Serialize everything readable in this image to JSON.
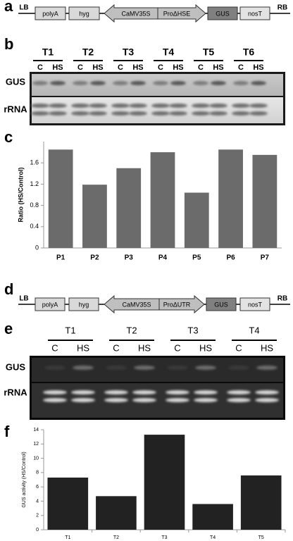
{
  "panels": {
    "a": {
      "label": "a",
      "construct": [
        "LB",
        "polyA",
        "hyg",
        "CaMV35S",
        "ProΔHSE",
        "GUS",
        "nosT",
        "RB"
      ]
    },
    "b": {
      "label": "b",
      "groups": [
        "T1",
        "T2",
        "T3",
        "T4",
        "T5",
        "T6"
      ],
      "lanes": [
        "C",
        "HS"
      ],
      "rows": [
        "GUS",
        "rRNA"
      ]
    },
    "c": {
      "label": "c"
    },
    "d": {
      "label": "d",
      "construct": [
        "LB",
        "polyA",
        "hyg",
        "CaMV35S",
        "ProΔUTR",
        "GUS",
        "nosT",
        "RB"
      ]
    },
    "e": {
      "label": "e",
      "groups": [
        "T1",
        "T2",
        "T3",
        "T4"
      ],
      "lanes": [
        "C",
        "HS"
      ],
      "rows": [
        "GUS",
        "rRNA"
      ]
    },
    "f": {
      "label": "f"
    }
  },
  "chart_data": [
    {
      "type": "bar",
      "y_label": "Ratio (HS/Control)",
      "categories": [
        "P1",
        "P2",
        "P3",
        "P4",
        "P5",
        "P6",
        "P7"
      ],
      "values": [
        1.85,
        1.19,
        1.5,
        1.8,
        1.04,
        1.85,
        1.75
      ],
      "color": "#6b6b6b",
      "ylim": [
        0,
        2.0
      ],
      "yticks": [
        0,
        0.4,
        0.8,
        1.2,
        1.6
      ]
    },
    {
      "type": "bar",
      "y_label": "GUS activity (HS/Control)",
      "categories": [
        "T1",
        "T2",
        "T3",
        "T4",
        "T5"
      ],
      "values": [
        7.3,
        4.7,
        13.3,
        3.6,
        7.6
      ],
      "color": "#222222",
      "ylim": [
        0,
        14
      ],
      "yticks": [
        0,
        2,
        4,
        6,
        8,
        10,
        12,
        14
      ]
    }
  ]
}
